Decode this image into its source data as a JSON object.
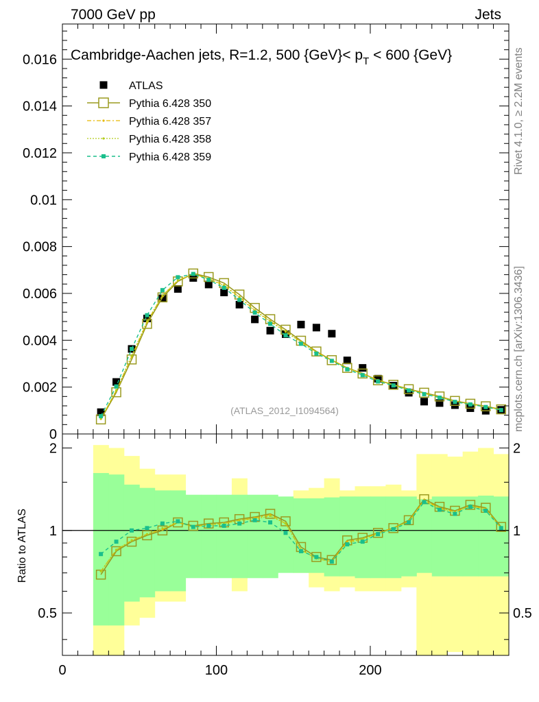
{
  "header": {
    "left": "7000 GeV pp",
    "right": "Jets"
  },
  "sidebar": {
    "rivet": "Rivet 4.1.0, ≥ 2.2M events",
    "mcplots": "mcplots.cern.ch [arXiv:1306.3436]"
  },
  "chart_data": [
    {
      "type": "scatter",
      "panel": "main",
      "title": "Cambridge-Aachen jets, R=1.2, 500 {GeV}< p_T < 600 {GeV}",
      "title_main": "Cambridge-Aachen jets, R=1.2, 500 {GeV}< p",
      "title_sub": "T",
      "title_tail": " < 600 {GeV}",
      "reference": "(ATLAS_2012_I1094564)",
      "xlim": [
        0,
        290
      ],
      "ylim": [
        0,
        0.0175
      ],
      "y_ticks": [
        0,
        0.002,
        0.004,
        0.006,
        0.008,
        0.01,
        0.012,
        0.014,
        0.016
      ],
      "y_tick_labels": [
        "0",
        "0.002",
        "0.004",
        "0.006",
        "0.008",
        "0.01",
        "0.012",
        "0.014",
        "0.016"
      ],
      "x": [
        25,
        35,
        45,
        55,
        65,
        75,
        85,
        95,
        105,
        115,
        125,
        135,
        145,
        155,
        165,
        175,
        185,
        195,
        205,
        215,
        225,
        235,
        245,
        255,
        265,
        275,
        285
      ],
      "series": [
        {
          "name": "ATLAS",
          "color": "#000000",
          "values": [
            0.00093,
            0.00222,
            0.00363,
            0.00493,
            0.00579,
            0.00619,
            0.00666,
            0.00638,
            0.00604,
            0.00552,
            0.00489,
            0.00441,
            0.00426,
            0.00467,
            0.00454,
            0.00428,
            0.00314,
            0.00282,
            0.00236,
            0.00206,
            0.00176,
            0.00138,
            0.00132,
            0.00123,
            0.0011,
            0.00099,
            0.00103
          ]
        },
        {
          "name": "Pythia 6.428 350",
          "color": "#9a9a1f",
          "values": [
            0.00062,
            0.00178,
            0.00318,
            0.0047,
            0.00583,
            0.00651,
            0.00685,
            0.0067,
            0.00644,
            0.00595,
            0.00538,
            0.0049,
            0.00445,
            0.00398,
            0.00352,
            0.00315,
            0.00282,
            0.00258,
            0.00229,
            0.0021,
            0.00191,
            0.00176,
            0.0016,
            0.00141,
            0.00129,
            0.00118,
            0.00105
          ]
        },
        {
          "name": "Pythia 6.428 357",
          "color": "#e6b800",
          "values": [
            0.00064,
            0.00185,
            0.0033,
            0.00478,
            0.0059,
            0.00655,
            0.00683,
            0.00664,
            0.00635,
            0.00585,
            0.00528,
            0.00482,
            0.00438,
            0.00394,
            0.0035,
            0.00316,
            0.00282,
            0.00257,
            0.0023,
            0.0021,
            0.0019,
            0.00174,
            0.00158,
            0.0014,
            0.00128,
            0.00117,
            0.00104
          ]
        },
        {
          "name": "Pythia 6.428 358",
          "color": "#b3cc1a",
          "values": [
            0.00065,
            0.00187,
            0.00333,
            0.00481,
            0.00592,
            0.00656,
            0.00682,
            0.00662,
            0.00633,
            0.00582,
            0.00526,
            0.0048,
            0.00436,
            0.00392,
            0.00348,
            0.00314,
            0.00281,
            0.00256,
            0.00229,
            0.00209,
            0.00189,
            0.00173,
            0.00157,
            0.00139,
            0.00127,
            0.00116,
            0.00103
          ]
        },
        {
          "name": "Pythia 6.428 359",
          "color": "#1abf8c",
          "values": [
            0.00076,
            0.00203,
            0.00363,
            0.00507,
            0.00614,
            0.00669,
            0.00683,
            0.00658,
            0.00624,
            0.00572,
            0.00518,
            0.0047,
            0.00421,
            0.00385,
            0.00343,
            0.00312,
            0.00276,
            0.00251,
            0.00224,
            0.00207,
            0.00186,
            0.0017,
            0.00155,
            0.00137,
            0.00126,
            0.00115,
            0.00102
          ]
        }
      ]
    },
    {
      "type": "scatter",
      "panel": "ratio",
      "ylabel": "Ratio to ATLAS",
      "xlim": [
        0,
        290
      ],
      "ylim": [
        0.35,
        2.25
      ],
      "x_ticks": [
        0,
        100,
        200
      ],
      "x_tick_labels": [
        "0",
        "100",
        "200"
      ],
      "y_ticks": [
        0.5,
        1,
        2
      ],
      "y_tick_labels": [
        "0.5",
        "1",
        "2"
      ],
      "bin_edges": [
        20,
        30,
        40,
        50,
        60,
        70,
        80,
        90,
        100,
        110,
        120,
        130,
        140,
        150,
        160,
        170,
        180,
        190,
        200,
        210,
        220,
        230,
        240,
        250,
        260,
        270,
        280,
        290
      ],
      "band_outer": {
        "color": "#ffff99",
        "low": [
          0.3,
          0.3,
          0.45,
          0.48,
          0.55,
          0.55,
          0.78,
          0.79,
          0.79,
          0.6,
          0.79,
          0.79,
          0.8,
          0.7,
          0.62,
          0.6,
          0.62,
          0.6,
          0.6,
          0.6,
          0.62,
          0.3,
          0.3,
          0.36,
          0.3,
          0.3,
          0.3
        ],
        "high": [
          2.05,
          2.0,
          1.87,
          1.68,
          1.6,
          1.6,
          1.3,
          1.29,
          1.28,
          1.55,
          1.29,
          1.29,
          1.3,
          1.4,
          1.43,
          1.55,
          1.4,
          1.45,
          1.45,
          1.47,
          1.4,
          1.9,
          1.9,
          1.86,
          1.94,
          2.0,
          1.9
        ]
      },
      "band_inner": {
        "color": "#99ff99",
        "low": [
          0.45,
          0.45,
          0.55,
          0.57,
          0.6,
          0.6,
          0.67,
          0.67,
          0.67,
          0.67,
          0.67,
          0.67,
          0.7,
          0.7,
          0.7,
          0.68,
          0.68,
          0.67,
          0.67,
          0.67,
          0.68,
          0.7,
          0.68,
          0.68,
          0.68,
          0.68,
          0.68
        ],
        "high": [
          1.62,
          1.6,
          1.47,
          1.43,
          1.4,
          1.4,
          1.35,
          1.35,
          1.35,
          1.35,
          1.35,
          1.35,
          1.33,
          1.31,
          1.31,
          1.32,
          1.33,
          1.33,
          1.33,
          1.33,
          1.33,
          1.3,
          1.33,
          1.33,
          1.33,
          1.34,
          1.33
        ]
      },
      "x": [
        25,
        35,
        45,
        55,
        65,
        75,
        85,
        95,
        105,
        115,
        125,
        135,
        145,
        155,
        165,
        175,
        185,
        195,
        205,
        215,
        225,
        235,
        245,
        255,
        265,
        275,
        285
      ],
      "series": [
        {
          "name": "Pythia 6.428 350",
          "color": "#9a9a1f",
          "values": [
            0.69,
            0.84,
            0.91,
            0.96,
            1.0,
            1.07,
            1.04,
            1.06,
            1.07,
            1.1,
            1.12,
            1.15,
            1.08,
            0.87,
            0.8,
            0.78,
            0.92,
            0.94,
            0.98,
            1.02,
            1.09,
            1.3,
            1.22,
            1.18,
            1.24,
            1.21,
            1.03
          ]
        },
        {
          "name": "Pythia 6.428 357",
          "color": "#e6b800",
          "values": [
            0.71,
            0.85,
            0.92,
            0.97,
            1.01,
            1.07,
            1.03,
            1.05,
            1.06,
            1.09,
            1.11,
            1.14,
            1.06,
            0.85,
            0.79,
            0.77,
            0.91,
            0.93,
            0.98,
            1.02,
            1.08,
            1.29,
            1.21,
            1.17,
            1.23,
            1.2,
            1.02
          ]
        },
        {
          "name": "Pythia 6.428 358",
          "color": "#b3cc1a",
          "values": [
            0.71,
            0.85,
            0.92,
            0.97,
            1.02,
            1.07,
            1.03,
            1.05,
            1.06,
            1.09,
            1.1,
            1.13,
            1.06,
            0.85,
            0.79,
            0.77,
            0.9,
            0.93,
            0.97,
            1.02,
            1.08,
            1.28,
            1.2,
            1.16,
            1.23,
            1.19,
            1.02
          ]
        },
        {
          "name": "Pythia 6.428 359",
          "color": "#1abf8c",
          "values": [
            0.82,
            0.91,
            1.0,
            1.02,
            1.06,
            1.08,
            1.03,
            1.04,
            1.04,
            1.06,
            1.09,
            1.07,
            0.98,
            0.84,
            0.8,
            0.77,
            0.89,
            0.91,
            0.97,
            1.01,
            1.07,
            1.27,
            1.19,
            1.15,
            1.22,
            1.18,
            1.02
          ]
        }
      ]
    }
  ]
}
